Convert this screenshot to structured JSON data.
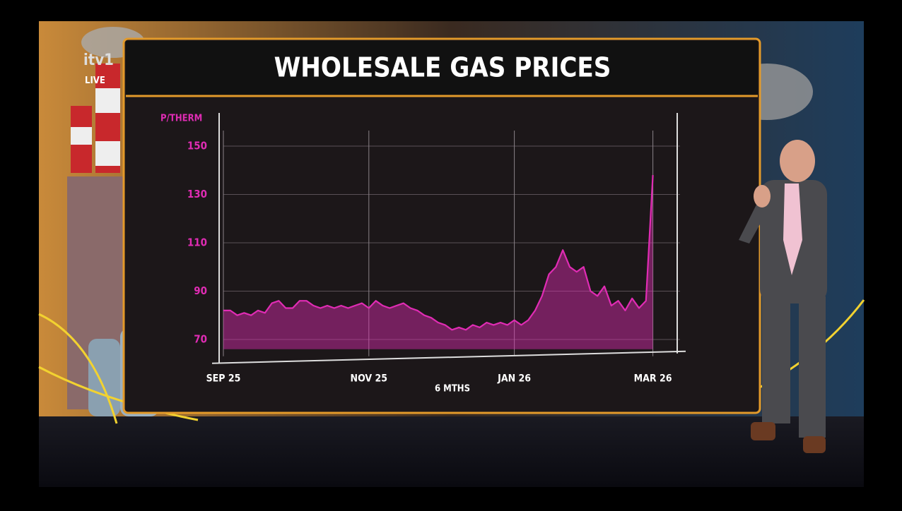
{
  "broadcast": {
    "channel": "itv1",
    "badge": "LIVE"
  },
  "chart_data": {
    "type": "area",
    "title": "WHOLESALE GAS PRICES",
    "y_label": "P/THERM",
    "x_label": "6 MTHS",
    "categories": [
      "SEP 25",
      null,
      null,
      null,
      null,
      null,
      null,
      null,
      null,
      null,
      null,
      null,
      null,
      null,
      null,
      null,
      null,
      null,
      null,
      null,
      null,
      "NOV 25",
      null,
      null,
      null,
      null,
      null,
      null,
      null,
      null,
      null,
      null,
      null,
      null,
      null,
      null,
      null,
      null,
      null,
      null,
      null,
      null,
      "JAN 26",
      null,
      null,
      null,
      null,
      null,
      null,
      null,
      null,
      null,
      null,
      null,
      null,
      null,
      null,
      null,
      null,
      null,
      null,
      null,
      "MAR 26"
    ],
    "series": [
      {
        "name": "Wholesale gas price",
        "color": "#e02cb4",
        "values": [
          82,
          82,
          80,
          81,
          80,
          82,
          81,
          85,
          86,
          83,
          83,
          86,
          86,
          84,
          83,
          84,
          83,
          84,
          83,
          84,
          85,
          83,
          86,
          84,
          83,
          84,
          85,
          83,
          82,
          80,
          79,
          77,
          76,
          74,
          75,
          74,
          76,
          75,
          77,
          76,
          77,
          76,
          78,
          76,
          78,
          82,
          88,
          97,
          100,
          107,
          100,
          98,
          100,
          90,
          88,
          92,
          84,
          86,
          82,
          87,
          83,
          86,
          138
        ]
      }
    ],
    "ylim": [
      66,
      164
    ],
    "yticks": [
      70,
      90,
      110,
      130,
      150
    ],
    "grid": true
  }
}
